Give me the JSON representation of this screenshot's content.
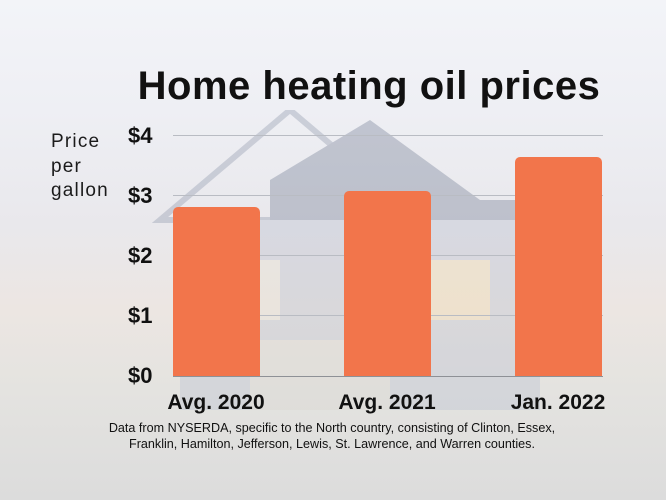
{
  "title": "Home heating oil prices",
  "y_axis_label": [
    "Price",
    "per",
    "gallon"
  ],
  "y_ticks": [
    "$4",
    "$3",
    "$2",
    "$1",
    "$0"
  ],
  "footnote": {
    "line1": "Data from NYSERDA, specific to the North country, consisting of Clinton, Essex,",
    "line2": "Franklin, Hamilton, Jefferson, Lewis, St. Lawrence, and Warren counties."
  },
  "colors": {
    "bar": "#f2754b",
    "grid": "#b9bcc3"
  },
  "chart_data": {
    "type": "bar",
    "title": "Home heating oil prices",
    "xlabel": "",
    "ylabel": "Price per gallon",
    "categories": [
      "Avg. 2020",
      "Avg. 2021",
      "Jan. 2022"
    ],
    "values": [
      2.81,
      3.07,
      3.64
    ],
    "ylim": [
      0,
      4
    ],
    "yticks": [
      "$0",
      "$1",
      "$2",
      "$3",
      "$4"
    ],
    "grid": true,
    "legend": null,
    "units": "USD per gallon"
  }
}
